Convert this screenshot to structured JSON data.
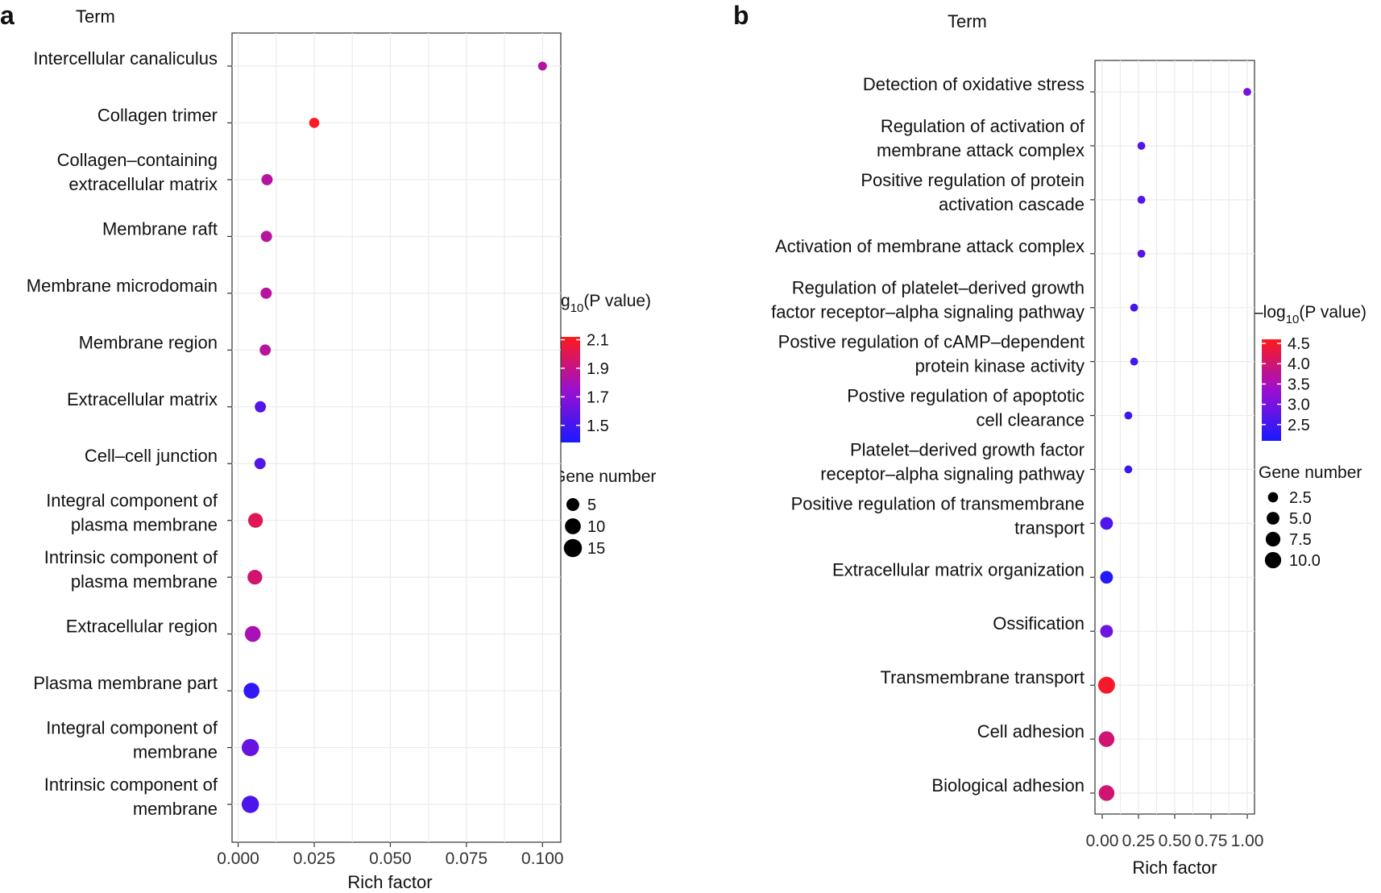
{
  "chart_data": [
    {
      "type": "scatter",
      "panel_label": "a",
      "y_title": "Term",
      "xlabel": "Rich factor",
      "xlim": [
        -0.002,
        0.106
      ],
      "x_ticks": [
        0.0,
        0.025,
        0.05,
        0.075,
        0.1
      ],
      "x_tick_labels": [
        "0.000",
        "0.025",
        "0.050",
        "0.075",
        "0.100"
      ],
      "color_legend": {
        "title_prefix": "–log",
        "title_sub": "10",
        "title_suffix": "(P  value)",
        "min": 1.38,
        "max": 2.12,
        "ticks": [
          1.5,
          1.7,
          1.9,
          2.1
        ],
        "tick_labels": [
          "1.5",
          "1.7",
          "1.9",
          "2.1"
        ],
        "low_color": "#1a1aff",
        "mid_color": "#9b10d0",
        "high_color": "#ff1a1a"
      },
      "size_legend": {
        "title": "Gene number",
        "values": [
          5,
          10,
          15
        ],
        "labels": [
          "5",
          "10",
          "15"
        ],
        "max_value": 16
      },
      "terms": [
        {
          "lines": [
            "Intercellular canaliculus"
          ],
          "rich_factor": 0.1,
          "neg_log10_p": 1.85,
          "gene_number": 1
        },
        {
          "lines": [
            "Collagen trimer"
          ],
          "rich_factor": 0.025,
          "neg_log10_p": 2.1,
          "gene_number": 2
        },
        {
          "lines": [
            "Collagen–containing",
            "extracellular matrix"
          ],
          "rich_factor": 0.0095,
          "neg_log10_p": 1.85,
          "gene_number": 3
        },
        {
          "lines": [
            "Membrane raft"
          ],
          "rich_factor": 0.0093,
          "neg_log10_p": 1.85,
          "gene_number": 3
        },
        {
          "lines": [
            "Membrane microdomain"
          ],
          "rich_factor": 0.0092,
          "neg_log10_p": 1.85,
          "gene_number": 3
        },
        {
          "lines": [
            "Membrane region"
          ],
          "rich_factor": 0.0089,
          "neg_log10_p": 1.85,
          "gene_number": 3
        },
        {
          "lines": [
            "Extracellular matrix"
          ],
          "rich_factor": 0.0073,
          "neg_log10_p": 1.55,
          "gene_number": 3
        },
        {
          "lines": [
            "Cell–cell junction"
          ],
          "rich_factor": 0.0072,
          "neg_log10_p": 1.55,
          "gene_number": 3
        },
        {
          "lines": [
            "Integral component of",
            "plasma membrane"
          ],
          "rich_factor": 0.0057,
          "neg_log10_p": 2.0,
          "gene_number": 8
        },
        {
          "lines": [
            "Intrinsic component of",
            "plasma membrane"
          ],
          "rich_factor": 0.0055,
          "neg_log10_p": 1.95,
          "gene_number": 8
        },
        {
          "lines": [
            "Extracellular region"
          ],
          "rich_factor": 0.0048,
          "neg_log10_p": 1.8,
          "gene_number": 10
        },
        {
          "lines": [
            "Plasma membrane part"
          ],
          "rich_factor": 0.0044,
          "neg_log10_p": 1.45,
          "gene_number": 10
        },
        {
          "lines": [
            "Integral component of",
            "membrane"
          ],
          "rich_factor": 0.004,
          "neg_log10_p": 1.6,
          "gene_number": 13
        },
        {
          "lines": [
            "Intrinsic component of",
            "membrane"
          ],
          "rich_factor": 0.004,
          "neg_log10_p": 1.52,
          "gene_number": 13
        }
      ]
    },
    {
      "type": "scatter",
      "panel_label": "b",
      "y_title": "Term",
      "xlabel": "Rich factor",
      "xlim": [
        -0.05,
        1.05
      ],
      "x_ticks": [
        0.0,
        0.25,
        0.5,
        0.75,
        1.0
      ],
      "x_tick_labels": [
        "0.00",
        "0.25",
        "0.50",
        "0.75",
        "1.00"
      ],
      "color_legend": {
        "title_prefix": "–log",
        "title_sub": "10",
        "title_suffix": "(P  value)",
        "min": 2.1,
        "max": 4.6,
        "ticks": [
          2.5,
          3.0,
          3.5,
          4.0,
          4.5
        ],
        "tick_labels": [
          "2.5",
          "3.0",
          "3.5",
          "4.0",
          "4.5"
        ],
        "low_color": "#1a1aff",
        "mid_color": "#9b10d0",
        "high_color": "#ff1a1a"
      },
      "size_legend": {
        "title": "Gene number",
        "values": [
          2.5,
          5.0,
          7.5,
          10.0
        ],
        "labels": [
          "2.5",
          "5.0",
          "7.5",
          "10.0"
        ],
        "max_value": 11
      },
      "terms": [
        {
          "lines": [
            "Detection of oxidative stress"
          ],
          "rich_factor": 1.0,
          "neg_log10_p": 3.0,
          "gene_number": 1
        },
        {
          "lines": [
            "Regulation of activation of",
            "membrane attack complex"
          ],
          "rich_factor": 0.27,
          "neg_log10_p": 2.7,
          "gene_number": 1
        },
        {
          "lines": [
            "Positive regulation of protein",
            "activation cascade"
          ],
          "rich_factor": 0.27,
          "neg_log10_p": 2.7,
          "gene_number": 1
        },
        {
          "lines": [
            "Activation of membrane attack complex"
          ],
          "rich_factor": 0.27,
          "neg_log10_p": 2.7,
          "gene_number": 1
        },
        {
          "lines": [
            "Regulation of platelet–derived growth",
            "factor receptor–alpha signaling pathway"
          ],
          "rich_factor": 0.22,
          "neg_log10_p": 2.5,
          "gene_number": 1
        },
        {
          "lines": [
            "Postive regulation of cAMP–dependent",
            "protein kinase activity"
          ],
          "rich_factor": 0.22,
          "neg_log10_p": 2.5,
          "gene_number": 1
        },
        {
          "lines": [
            "Postive regulation of apoptotic",
            "cell clearance"
          ],
          "rich_factor": 0.18,
          "neg_log10_p": 2.4,
          "gene_number": 1
        },
        {
          "lines": [
            "Platelet–derived growth factor",
            "receptor–alpha signaling pathway"
          ],
          "rich_factor": 0.18,
          "neg_log10_p": 2.4,
          "gene_number": 1
        },
        {
          "lines": [
            "Positive regulation of transmembrane",
            "transport"
          ],
          "rich_factor": 0.03,
          "neg_log10_p": 2.6,
          "gene_number": 5
        },
        {
          "lines": [
            "Extracellular matrix organization"
          ],
          "rich_factor": 0.03,
          "neg_log10_p": 2.2,
          "gene_number": 5
        },
        {
          "lines": [
            "Ossification"
          ],
          "rich_factor": 0.03,
          "neg_log10_p": 2.9,
          "gene_number": 5
        },
        {
          "lines": [
            "Transmembrane transport"
          ],
          "rich_factor": 0.03,
          "neg_log10_p": 4.5,
          "gene_number": 11
        },
        {
          "lines": [
            "Cell adhesion"
          ],
          "rich_factor": 0.03,
          "neg_log10_p": 4.0,
          "gene_number": 9
        },
        {
          "lines": [
            "Biological adhesion"
          ],
          "rich_factor": 0.03,
          "neg_log10_p": 4.0,
          "gene_number": 9
        }
      ]
    }
  ]
}
